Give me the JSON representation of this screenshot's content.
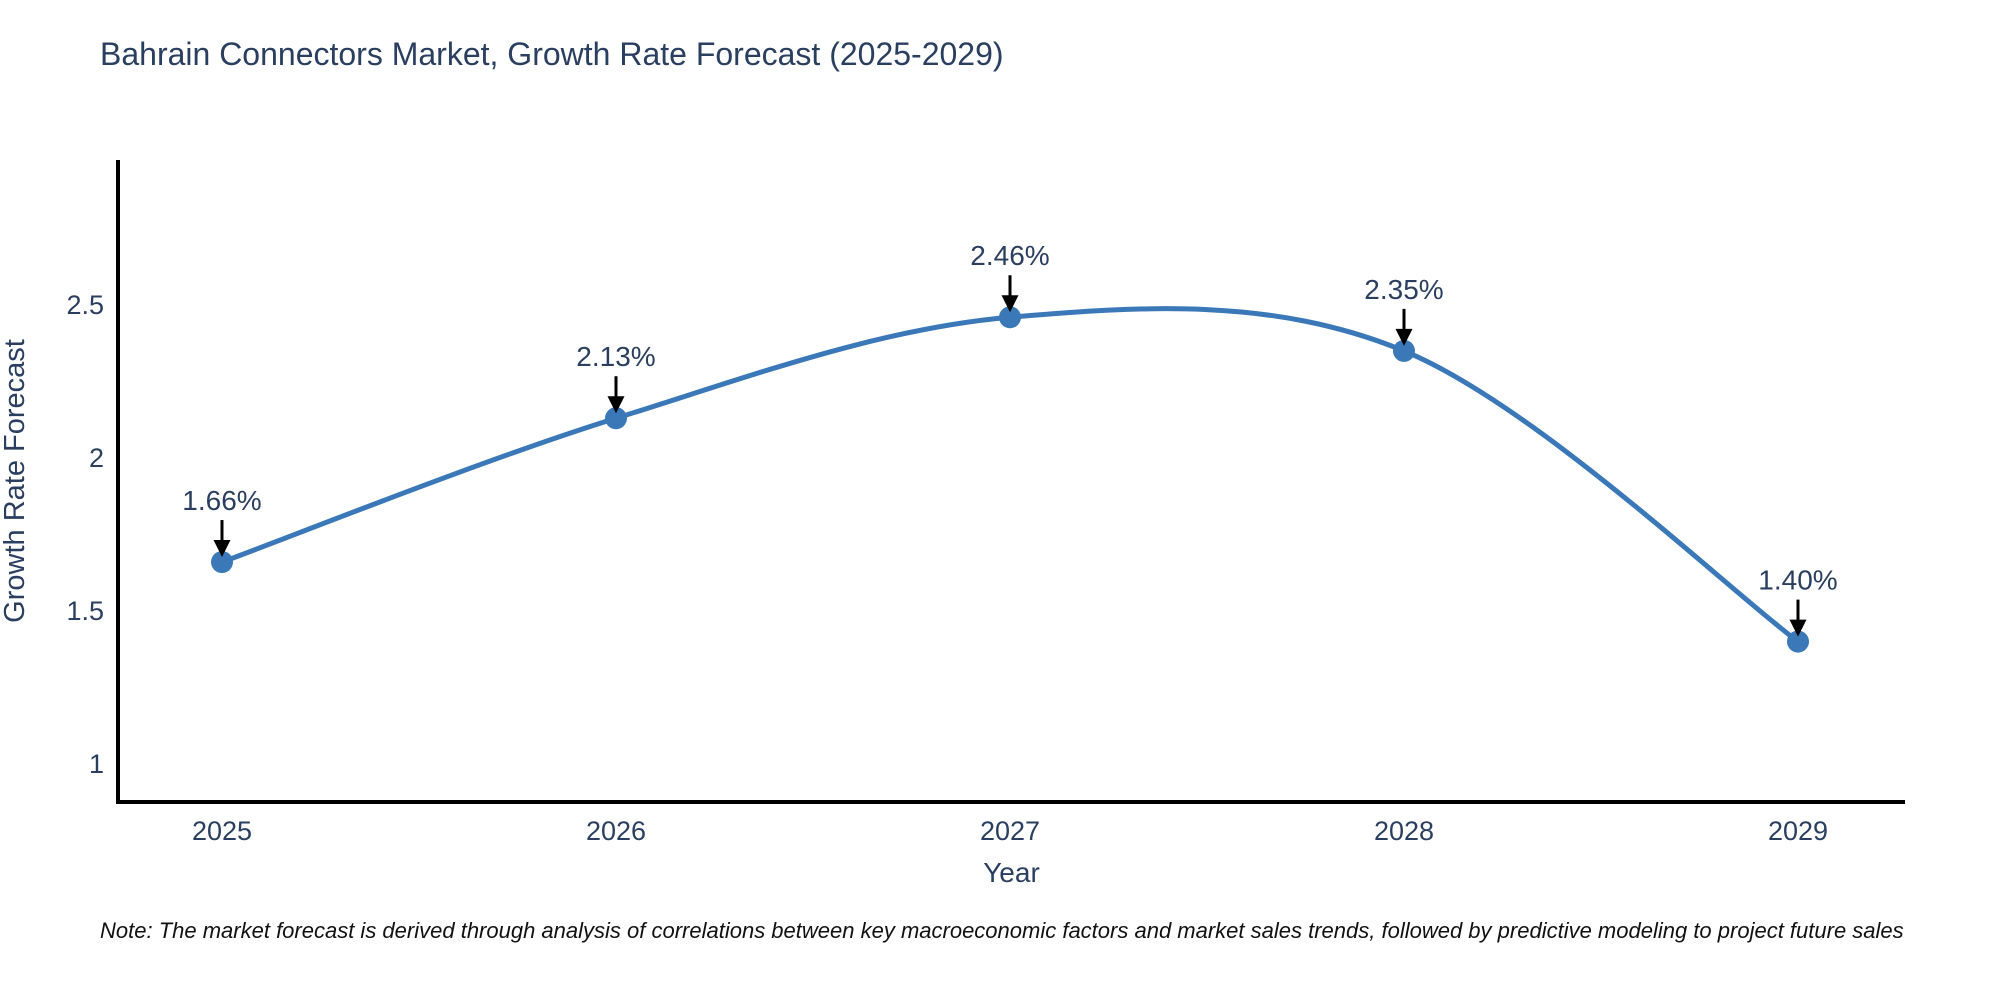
{
  "title": "Bahrain Connectors Market, Growth Rate Forecast (2025-2029)",
  "note": "Note: The market forecast is derived through analysis of correlations between key macroeconomic factors and market sales trends, followed by predictive modeling to project future sales",
  "chart_data": {
    "type": "line",
    "line_shape": "spline",
    "title": "Bahrain Connectors Market, Growth Rate Forecast (2025-2029)",
    "xlabel": "Year",
    "ylabel": "Growth Rate Forecast",
    "x": [
      2025,
      2026,
      2027,
      2028,
      2029
    ],
    "y": [
      1.66,
      2.13,
      2.46,
      2.35,
      1.4
    ],
    "point_labels": [
      "1.66%",
      "2.13%",
      "2.46%",
      "2.35%",
      "1.40%"
    ],
    "annotations": [
      {
        "x": 2025,
        "y": 1.66,
        "text": "1.66%"
      },
      {
        "x": 2026,
        "y": 2.13,
        "text": "2.13%"
      },
      {
        "x": 2027,
        "y": 2.46,
        "text": "2.46%"
      },
      {
        "x": 2028,
        "y": 2.35,
        "text": "2.35%"
      },
      {
        "x": 2029,
        "y": 1.4,
        "text": "1.40%"
      }
    ],
    "x_ticks": [
      {
        "value": 2025,
        "label": "2025"
      },
      {
        "value": 2026,
        "label": "2026"
      },
      {
        "value": 2027,
        "label": "2027"
      },
      {
        "value": 2028,
        "label": "2028"
      },
      {
        "value": 2029,
        "label": "2029"
      }
    ],
    "y_ticks": [
      {
        "value": 2.5,
        "label": "2.5"
      },
      {
        "value": 2.0,
        "label": "2"
      },
      {
        "value": 1.5,
        "label": "1.5"
      },
      {
        "value": 1.0,
        "label": "1"
      }
    ],
    "ylim": [
      0.875,
      2.975
    ],
    "grid": false,
    "legend": "none",
    "colors": {
      "line": "#3a78b8",
      "marker": "#3a78b8",
      "axis_line": "#000000",
      "annotation_arrow": "#000000",
      "title_text": "#2a3f5f",
      "tick_text": "#2a3f5f",
      "axis_label_text": "#2a3f5f",
      "annotation_text": "#2a3f5f",
      "note_text": "#111111",
      "background": "#ffffff"
    }
  }
}
